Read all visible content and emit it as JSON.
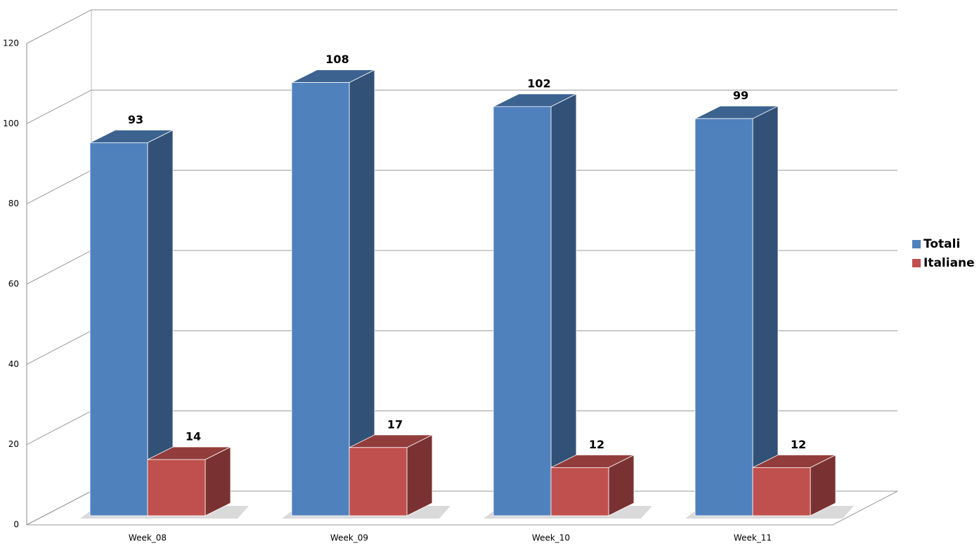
{
  "chart_data": {
    "type": "bar3d",
    "categories": [
      "Week_08",
      "Week_09",
      "Week_10",
      "Week_11"
    ],
    "series": [
      {
        "name": "Totali",
        "color": "#4f81bd",
        "values": [
          93,
          108,
          102,
          99
        ]
      },
      {
        "name": "Italiane",
        "color": "#c0504d",
        "values": [
          14,
          17,
          12,
          12
        ]
      }
    ],
    "ylim": [
      0,
      120
    ],
    "yticks": [
      0,
      20,
      40,
      60,
      80,
      100,
      120
    ],
    "grid": true,
    "legend": "right"
  }
}
